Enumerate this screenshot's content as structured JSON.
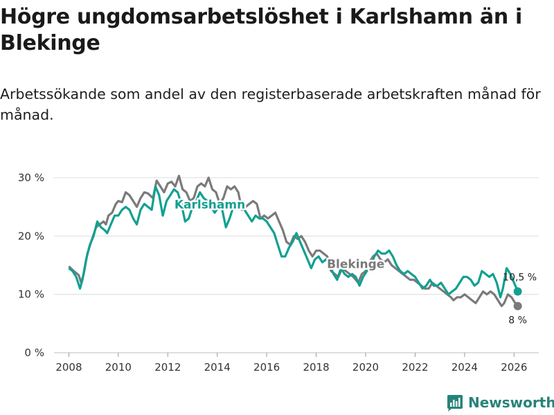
{
  "title": "Högre ungdomsarbetslöshet i Karlshamn än i Blekinge",
  "subtitle": "Arbetssökande som andel av den registerbaserade arbetskraften månad för månad.",
  "brand": "Newsworthy",
  "chart_data": {
    "type": "line",
    "ylim": [
      0,
      32
    ],
    "xlim": [
      2007.4,
      2027.0
    ],
    "yticks": [
      0,
      10,
      20,
      30
    ],
    "ytick_labels": [
      "0 %",
      "10 %",
      "20 %",
      "30 %"
    ],
    "xticks": [
      2008,
      2010,
      2012,
      2014,
      2016,
      2018,
      2020,
      2022,
      2024,
      2026
    ],
    "xtick_labels": [
      "2008",
      "2010",
      "2012",
      "2014",
      "2016",
      "2018",
      "2020",
      "2022",
      "2024",
      "2026"
    ],
    "grid": true,
    "series": [
      {
        "name": "Blekinge",
        "color": "#7a7a7a",
        "label_at": [
          2019.6,
          14.5
        ],
        "end_label": "8 %",
        "end_value": 8,
        "points": [
          [
            2008.0,
            14.8
          ],
          [
            2008.2,
            14.0
          ],
          [
            2008.4,
            13.3
          ],
          [
            2008.5,
            12.0
          ],
          [
            2008.6,
            13.5
          ],
          [
            2008.75,
            17.0
          ],
          [
            2008.9,
            19.0
          ],
          [
            2009.1,
            21.5
          ],
          [
            2009.25,
            22.0
          ],
          [
            2009.4,
            22.5
          ],
          [
            2009.5,
            22.0
          ],
          [
            2009.6,
            23.5
          ],
          [
            2009.75,
            24.0
          ],
          [
            2009.9,
            25.5
          ],
          [
            2010.0,
            26.0
          ],
          [
            2010.15,
            25.8
          ],
          [
            2010.3,
            27.5
          ],
          [
            2010.45,
            27.0
          ],
          [
            2010.6,
            26.0
          ],
          [
            2010.75,
            25.0
          ],
          [
            2010.9,
            26.5
          ],
          [
            2011.05,
            27.5
          ],
          [
            2011.2,
            27.3
          ],
          [
            2011.4,
            26.5
          ],
          [
            2011.55,
            29.5
          ],
          [
            2011.7,
            28.5
          ],
          [
            2011.85,
            27.5
          ],
          [
            2012.0,
            29.0
          ],
          [
            2012.15,
            29.3
          ],
          [
            2012.3,
            28.5
          ],
          [
            2012.45,
            30.3
          ],
          [
            2012.6,
            28.0
          ],
          [
            2012.75,
            27.5
          ],
          [
            2012.9,
            26.0
          ],
          [
            2013.05,
            26.5
          ],
          [
            2013.2,
            28.5
          ],
          [
            2013.35,
            29.0
          ],
          [
            2013.5,
            28.5
          ],
          [
            2013.65,
            30.0
          ],
          [
            2013.8,
            28.0
          ],
          [
            2013.95,
            27.5
          ],
          [
            2014.1,
            25.5
          ],
          [
            2014.25,
            26.5
          ],
          [
            2014.4,
            28.5
          ],
          [
            2014.55,
            28.0
          ],
          [
            2014.7,
            28.5
          ],
          [
            2014.85,
            27.5
          ],
          [
            2015.0,
            24.5
          ],
          [
            2015.15,
            25.0
          ],
          [
            2015.3,
            25.5
          ],
          [
            2015.45,
            26.0
          ],
          [
            2015.6,
            25.5
          ],
          [
            2015.75,
            23.0
          ],
          [
            2015.9,
            23.5
          ],
          [
            2016.05,
            23.0
          ],
          [
            2016.2,
            23.5
          ],
          [
            2016.35,
            24.0
          ],
          [
            2016.5,
            22.5
          ],
          [
            2016.65,
            21.0
          ],
          [
            2016.8,
            19.0
          ],
          [
            2016.95,
            18.5
          ],
          [
            2017.1,
            20.0
          ],
          [
            2017.25,
            19.5
          ],
          [
            2017.4,
            20.0
          ],
          [
            2017.55,
            19.0
          ],
          [
            2017.7,
            17.5
          ],
          [
            2017.85,
            16.5
          ],
          [
            2018.0,
            17.5
          ],
          [
            2018.15,
            17.5
          ],
          [
            2018.3,
            17.0
          ],
          [
            2018.45,
            16.5
          ],
          [
            2018.6,
            14.0
          ],
          [
            2018.75,
            13.5
          ],
          [
            2018.9,
            13.0
          ],
          [
            2019.05,
            14.5
          ],
          [
            2019.2,
            14.0
          ],
          [
            2019.35,
            13.5
          ],
          [
            2019.5,
            13.0
          ],
          [
            2019.6,
            12.5
          ],
          [
            2019.7,
            12.0
          ],
          [
            2019.85,
            13.5
          ],
          [
            2020.0,
            14.0
          ],
          [
            2020.15,
            15.5
          ],
          [
            2020.3,
            16.5
          ],
          [
            2020.45,
            17.0
          ],
          [
            2020.6,
            16.0
          ],
          [
            2020.75,
            15.5
          ],
          [
            2020.9,
            16.0
          ],
          [
            2021.05,
            15.0
          ],
          [
            2021.2,
            14.5
          ],
          [
            2021.35,
            14.0
          ],
          [
            2021.5,
            13.5
          ],
          [
            2021.65,
            13.0
          ],
          [
            2021.8,
            12.5
          ],
          [
            2021.95,
            12.5
          ],
          [
            2022.1,
            12.0
          ],
          [
            2022.25,
            11.5
          ],
          [
            2022.4,
            11.0
          ],
          [
            2022.55,
            11.0
          ],
          [
            2022.7,
            12.0
          ],
          [
            2022.85,
            11.5
          ],
          [
            2023.0,
            11.0
          ],
          [
            2023.15,
            10.5
          ],
          [
            2023.3,
            10.0
          ],
          [
            2023.45,
            9.5
          ],
          [
            2023.55,
            9.0
          ],
          [
            2023.7,
            9.5
          ],
          [
            2023.85,
            9.5
          ],
          [
            2024.0,
            10.0
          ],
          [
            2024.15,
            9.5
          ],
          [
            2024.3,
            9.0
          ],
          [
            2024.45,
            8.5
          ],
          [
            2024.6,
            9.5
          ],
          [
            2024.75,
            10.5
          ],
          [
            2024.9,
            10.0
          ],
          [
            2025.05,
            10.5
          ],
          [
            2025.2,
            10.0
          ],
          [
            2025.35,
            9.0
          ],
          [
            2025.5,
            8.0
          ],
          [
            2025.6,
            8.5
          ],
          [
            2025.75,
            10.0
          ],
          [
            2025.9,
            9.5
          ],
          [
            2026.05,
            8.5
          ],
          [
            2026.15,
            8.0
          ]
        ]
      },
      {
        "name": "Karlshamn",
        "color": "#12a091",
        "label_at": [
          2013.7,
          24.7
        ],
        "end_label": "10,5 %",
        "end_value": 10.5,
        "points": [
          [
            2008.0,
            14.5
          ],
          [
            2008.15,
            14.0
          ],
          [
            2008.3,
            13.0
          ],
          [
            2008.45,
            11.0
          ],
          [
            2008.55,
            12.5
          ],
          [
            2008.7,
            16.0
          ],
          [
            2008.85,
            18.5
          ],
          [
            2009.0,
            20.0
          ],
          [
            2009.15,
            22.5
          ],
          [
            2009.3,
            21.5
          ],
          [
            2009.45,
            21.0
          ],
          [
            2009.55,
            20.5
          ],
          [
            2009.7,
            22.0
          ],
          [
            2009.85,
            23.5
          ],
          [
            2010.0,
            23.5
          ],
          [
            2010.15,
            24.5
          ],
          [
            2010.3,
            25.0
          ],
          [
            2010.45,
            24.5
          ],
          [
            2010.6,
            23.0
          ],
          [
            2010.75,
            22.0
          ],
          [
            2010.9,
            24.5
          ],
          [
            2011.05,
            25.5
          ],
          [
            2011.2,
            25.0
          ],
          [
            2011.35,
            24.5
          ],
          [
            2011.5,
            28.5
          ],
          [
            2011.65,
            27.0
          ],
          [
            2011.8,
            23.5
          ],
          [
            2011.95,
            26.0
          ],
          [
            2012.1,
            27.0
          ],
          [
            2012.25,
            28.0
          ],
          [
            2012.4,
            27.5
          ],
          [
            2012.55,
            25.5
          ],
          [
            2012.7,
            22.5
          ],
          [
            2012.85,
            23.0
          ],
          [
            2013.0,
            25.0
          ],
          [
            2013.15,
            26.0
          ],
          [
            2013.3,
            27.5
          ],
          [
            2013.45,
            26.5
          ],
          [
            2013.6,
            26.0
          ],
          [
            2013.75,
            25.0
          ],
          [
            2013.9,
            24.0
          ],
          [
            2014.05,
            25.0
          ],
          [
            2014.2,
            24.5
          ],
          [
            2014.35,
            21.5
          ],
          [
            2014.5,
            23.0
          ],
          [
            2014.65,
            25.0
          ],
          [
            2014.8,
            25.5
          ],
          [
            2014.95,
            25.0
          ],
          [
            2015.1,
            24.5
          ],
          [
            2015.25,
            23.5
          ],
          [
            2015.4,
            22.5
          ],
          [
            2015.55,
            23.5
          ],
          [
            2015.7,
            23.0
          ],
          [
            2015.85,
            23.0
          ],
          [
            2016.0,
            22.5
          ],
          [
            2016.15,
            21.5
          ],
          [
            2016.3,
            20.5
          ],
          [
            2016.45,
            18.5
          ],
          [
            2016.6,
            16.5
          ],
          [
            2016.75,
            16.5
          ],
          [
            2016.9,
            18.0
          ],
          [
            2017.05,
            19.0
          ],
          [
            2017.2,
            20.5
          ],
          [
            2017.35,
            19.0
          ],
          [
            2017.5,
            17.5
          ],
          [
            2017.65,
            16.0
          ],
          [
            2017.8,
            14.5
          ],
          [
            2017.95,
            16.0
          ],
          [
            2018.1,
            16.5
          ],
          [
            2018.25,
            15.5
          ],
          [
            2018.4,
            16.0
          ],
          [
            2018.55,
            15.0
          ],
          [
            2018.7,
            13.5
          ],
          [
            2018.85,
            12.5
          ],
          [
            2019.0,
            14.5
          ],
          [
            2019.15,
            13.5
          ],
          [
            2019.3,
            13.0
          ],
          [
            2019.45,
            13.5
          ],
          [
            2019.6,
            13.0
          ],
          [
            2019.75,
            11.5
          ],
          [
            2019.9,
            13.0
          ],
          [
            2020.05,
            14.0
          ],
          [
            2020.2,
            14.5
          ],
          [
            2020.35,
            16.5
          ],
          [
            2020.5,
            17.5
          ],
          [
            2020.65,
            17.0
          ],
          [
            2020.8,
            17.0
          ],
          [
            2020.95,
            17.5
          ],
          [
            2021.1,
            16.5
          ],
          [
            2021.25,
            15.0
          ],
          [
            2021.4,
            14.0
          ],
          [
            2021.55,
            13.5
          ],
          [
            2021.7,
            14.0
          ],
          [
            2021.85,
            13.5
          ],
          [
            2022.0,
            13.0
          ],
          [
            2022.15,
            12.0
          ],
          [
            2022.3,
            11.0
          ],
          [
            2022.45,
            11.5
          ],
          [
            2022.6,
            12.5
          ],
          [
            2022.75,
            11.5
          ],
          [
            2022.9,
            11.5
          ],
          [
            2023.05,
            12.0
          ],
          [
            2023.2,
            11.0
          ],
          [
            2023.35,
            10.0
          ],
          [
            2023.5,
            10.5
          ],
          [
            2023.65,
            11.0
          ],
          [
            2023.8,
            12.0
          ],
          [
            2023.95,
            13.0
          ],
          [
            2024.1,
            13.0
          ],
          [
            2024.25,
            12.5
          ],
          [
            2024.4,
            11.5
          ],
          [
            2024.55,
            12.0
          ],
          [
            2024.7,
            14.0
          ],
          [
            2024.85,
            13.5
          ],
          [
            2025.0,
            13.0
          ],
          [
            2025.15,
            13.5
          ],
          [
            2025.3,
            12.0
          ],
          [
            2025.45,
            9.5
          ],
          [
            2025.55,
            11.0
          ],
          [
            2025.7,
            14.5
          ],
          [
            2025.85,
            13.5
          ],
          [
            2026.0,
            12.0
          ],
          [
            2026.15,
            10.5
          ]
        ]
      }
    ]
  }
}
